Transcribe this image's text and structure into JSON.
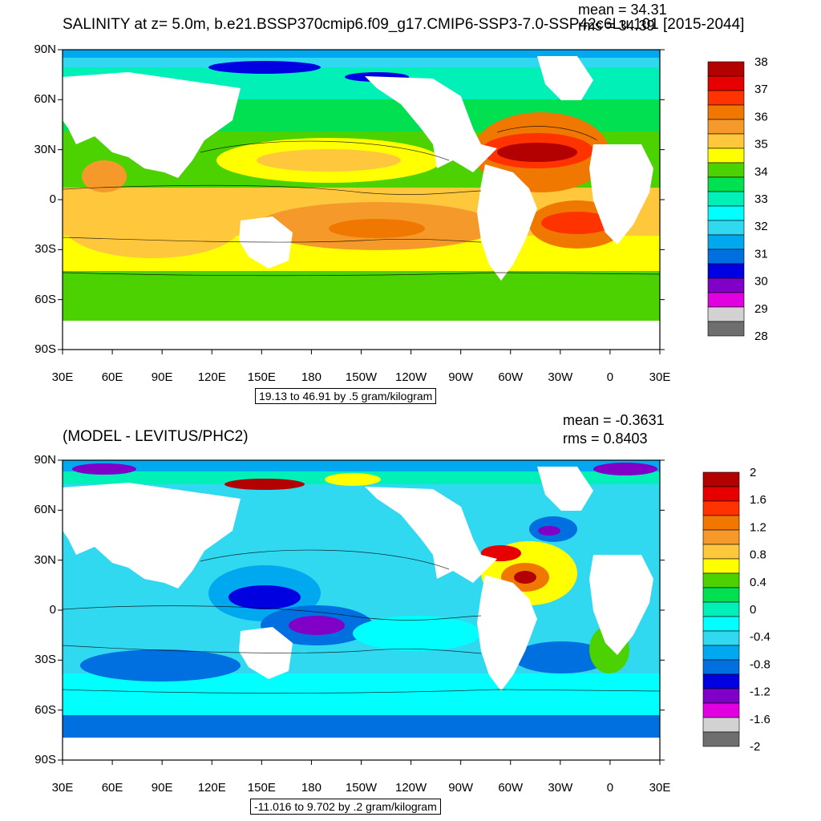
{
  "panels": [
    {
      "title": "SALINITY at z=   5.0m, b.e21.BSSP370cmip6.f09_g17.CMIP6-SSP3-7.0-SSP42c6Lu.101 [2015-2044]",
      "mean_text": "mean = 34.31",
      "rms_text": "rms = 34.39",
      "info_text": "19.13 to 46.91 by .5 gram/kilogram",
      "lat_labels": [
        "90N",
        "60N",
        "30N",
        "0",
        "30S",
        "60S",
        "90S"
      ],
      "lon_labels": [
        "30E",
        "60E",
        "90E",
        "120E",
        "150E",
        "180",
        "150W",
        "120W",
        "90W",
        "60W",
        "30W",
        "0",
        "30E"
      ],
      "colorbar": {
        "labels": [
          "38",
          "37",
          "36",
          "35",
          "34",
          "33",
          "32",
          "31",
          "30",
          "29",
          "28"
        ],
        "colors": [
          "#b30000",
          "#e60000",
          "#ff3300",
          "#f07800",
          "#f59a2a",
          "#ffc83c",
          "#ffff00",
          "#4bd200",
          "#00e050",
          "#00f0b8",
          "#00ffff",
          "#30d8f0",
          "#00a8f0",
          "#0070e0",
          "#0000e0",
          "#8000c8",
          "#e000e0",
          "#d2d2d2",
          "#6e6e6e"
        ]
      }
    },
    {
      "title": "(MODEL - LEVITUS/PHC2)",
      "mean_text": "mean = -0.3631",
      "rms_text": "rms = 0.8403",
      "info_text": "-11.016 to 9.702 by .2 gram/kilogram",
      "lat_labels": [
        "90N",
        "60N",
        "30N",
        "0",
        "30S",
        "60S",
        "90S"
      ],
      "lon_labels": [
        "30E",
        "60E",
        "90E",
        "120E",
        "150E",
        "180",
        "150W",
        "120W",
        "90W",
        "60W",
        "30W",
        "0",
        "30E"
      ],
      "colorbar": {
        "labels": [
          "2",
          "1.6",
          "1.2",
          "0.8",
          "0.4",
          "0",
          "-0.4",
          "-0.8",
          "-1.2",
          "-1.6",
          "-2"
        ],
        "colors": [
          "#b30000",
          "#e60000",
          "#ff3300",
          "#f07800",
          "#f59a2a",
          "#ffc83c",
          "#ffff00",
          "#4bd200",
          "#00e050",
          "#00f0b8",
          "#00ffff",
          "#30d8f0",
          "#00a8f0",
          "#0070e0",
          "#0000e0",
          "#8000c8",
          "#e000e0",
          "#d2d2d2",
          "#6e6e6e"
        ]
      }
    }
  ]
}
